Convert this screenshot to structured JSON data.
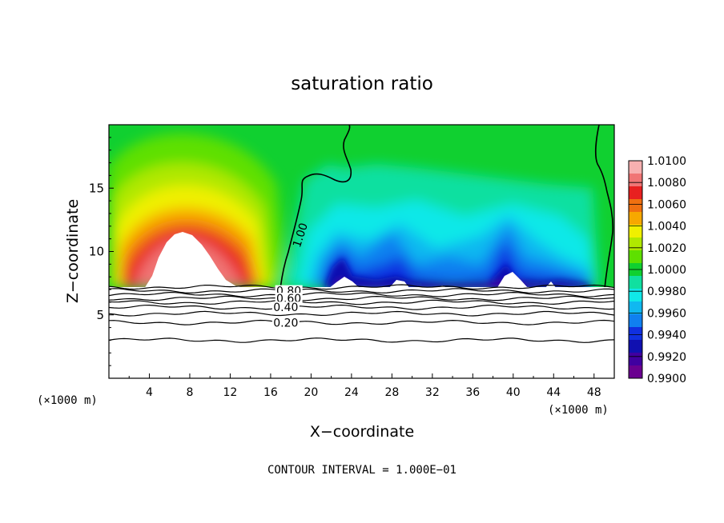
{
  "chart_data": {
    "type": "heatmap",
    "title": "saturation ratio",
    "xlabel": "X−coordinate",
    "ylabel": "Z−coordinate",
    "x_unit": "(×1000 m)",
    "z_unit": "(×1000 m)",
    "xlim": [
      0,
      50
    ],
    "ylim": [
      0,
      20
    ],
    "x_ticks": [
      4,
      8,
      12,
      16,
      20,
      24,
      28,
      32,
      36,
      40,
      44,
      48
    ],
    "y_ticks": [
      5,
      10,
      15
    ],
    "colorbar": {
      "levels": [
        "1.0100",
        "1.0080",
        "1.0060",
        "1.0040",
        "1.0020",
        "1.0000",
        "0.9980",
        "0.9960",
        "0.9940",
        "0.9920",
        "0.9900"
      ],
      "colors": [
        "#f7b0b0",
        "#f07575",
        "#e82020",
        "#f07010",
        "#f7a800",
        "#f0f000",
        "#b0e800",
        "#5ee000",
        "#10d030",
        "#10e0a0",
        "#10e8e8",
        "#10b8f0",
        "#1080f0",
        "#1030e0",
        "#1010b0",
        "#4000a0",
        "#6a0090"
      ]
    },
    "contour_labels": [
      {
        "text": "1.00",
        "x": 18.9,
        "z": 11.3
      },
      {
        "text": "0.80",
        "x": 17.8,
        "z": 6.9
      },
      {
        "text": "0.60",
        "x": 17.8,
        "z": 6.3
      },
      {
        "text": "0.40",
        "x": 17.5,
        "z": 5.6
      },
      {
        "text": "0.20",
        "x": 17.5,
        "z": 4.4
      }
    ],
    "contour_lines_z": [
      3.0,
      4.4,
      5.1,
      5.6,
      6.0,
      6.3,
      6.6,
      6.9,
      7.2
    ]
  },
  "footer": {
    "contour_interval": "CONTOUR INTERVAL = 1.000E−01"
  }
}
